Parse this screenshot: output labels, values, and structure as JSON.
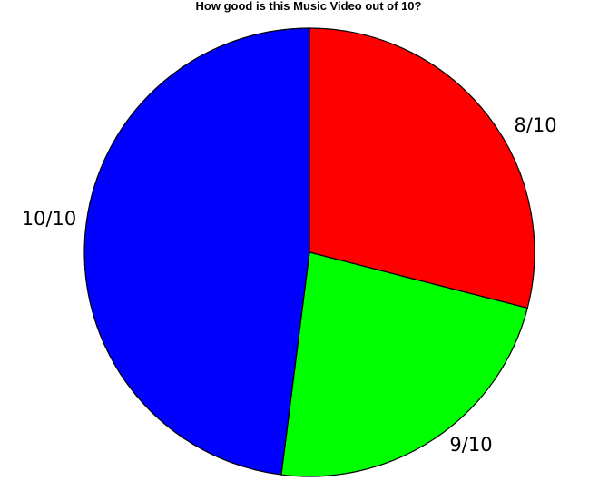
{
  "chart_data": {
    "type": "pie",
    "title": "How good is this Music Video out of 10?",
    "slices": [
      {
        "label": "8/10",
        "value": 29,
        "color": "#ff0000"
      },
      {
        "label": "9/10",
        "value": 23,
        "color": "#00ff00"
      },
      {
        "label": "10/10",
        "value": 48,
        "color": "#0000ff"
      }
    ],
    "start_angle_deg": 90,
    "direction": "clockwise"
  }
}
